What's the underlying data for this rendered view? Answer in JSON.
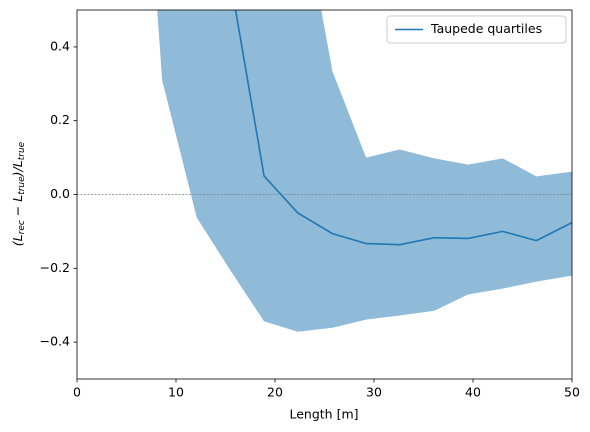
{
  "chart_data": {
    "type": "line",
    "x_label": "Length [m]",
    "y_label": [
      "(L",
      "rec",
      " − L",
      "true",
      ")/L",
      "true"
    ],
    "x": [
      5.2,
      8.6,
      12.1,
      15.5,
      18.9,
      22.3,
      25.8,
      29.2,
      32.6,
      36.1,
      39.5,
      43.0,
      46.4,
      50.0
    ],
    "series": [
      {
        "name": "Taupede quartiles",
        "color": "#1f77b4",
        "values": [
          null,
          null,
          null,
          0.58,
          0.05,
          -0.05,
          -0.106,
          -0.133,
          -0.136,
          -0.117,
          -0.119,
          -0.1,
          -0.125,
          -0.076
        ]
      }
    ],
    "band": {
      "color": "#8fbbd9",
      "lower": [
        1.6,
        0.31,
        -0.063,
        -0.206,
        -0.344,
        -0.372,
        -0.361,
        -0.339,
        -0.328,
        -0.315,
        -0.271,
        -0.255,
        -0.236,
        -0.22
      ],
      "upper": [
        2.0,
        1.8,
        1.6,
        1.3,
        1.0,
        0.85,
        0.334,
        0.1,
        0.122,
        0.098,
        0.081,
        0.098,
        0.049,
        0.062
      ]
    },
    "hline": 0,
    "xlim": [
      0,
      50
    ],
    "xticks": [
      0,
      10,
      20,
      30,
      40,
      50
    ],
    "ylim": [
      -0.5,
      0.5
    ],
    "yticks": [
      {
        "value": -0.4,
        "label": "−0.4"
      },
      {
        "value": -0.2,
        "label": "−0.2"
      },
      {
        "value": 0,
        "label": "0.0"
      },
      0.2,
      0.4
    ],
    "legend": "upper right"
  }
}
